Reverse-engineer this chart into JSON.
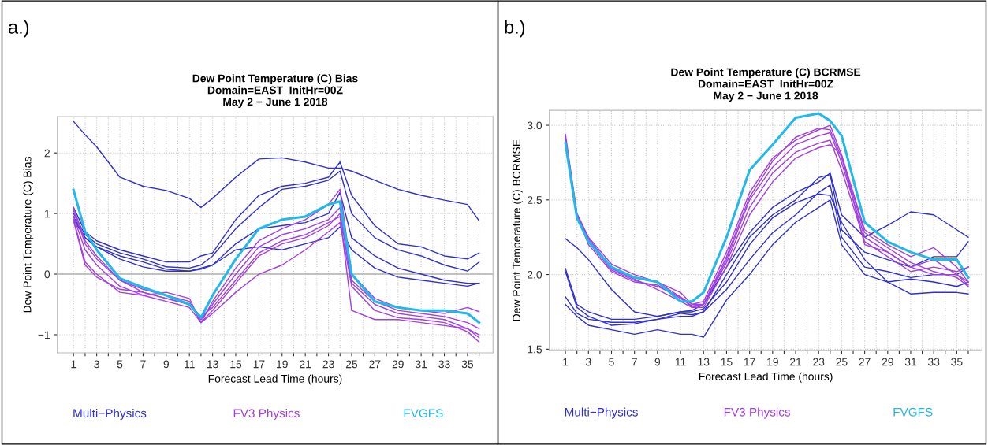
{
  "chart_data": [
    {
      "type": "line",
      "title": "Dew Point Temperature (C) Bias\nDomain=EAST  InitHr=00Z\nMay 2 − June 1 2018",
      "xlabel": "Forecast Lead Time (hours)",
      "ylabel": "Dew Point Temperature (C) Bias",
      "annotations": [
        "a.)"
      ],
      "legend": "bottom",
      "grid": true,
      "marker": "none",
      "line_style": "solid",
      "x": [
        1,
        2,
        3,
        5,
        7,
        9,
        11,
        12,
        13,
        15,
        17,
        19,
        21,
        23,
        24,
        25,
        27,
        29,
        31,
        33,
        35,
        36
      ],
      "xlim": [
        -0.4,
        37.2
      ],
      "xticks": [
        1,
        {
          "value": 2,
          "label": null
        },
        3,
        {
          "value": 4,
          "label": null
        },
        5,
        {
          "value": 6,
          "label": null
        },
        7,
        {
          "value": 8,
          "label": null
        },
        9,
        {
          "value": 10,
          "label": null
        },
        11,
        {
          "value": 12,
          "label": null
        },
        13,
        {
          "value": 14,
          "label": null
        },
        15,
        {
          "value": 16,
          "label": null
        },
        17,
        {
          "value": 18,
          "label": null
        },
        19,
        {
          "value": 20,
          "label": null
        },
        21,
        {
          "value": 22,
          "label": null
        },
        23,
        {
          "value": 24,
          "label": null
        },
        25,
        {
          "value": 26,
          "label": null
        },
        27,
        {
          "value": 28,
          "label": null
        },
        29,
        {
          "value": 30,
          "label": null
        },
        31,
        {
          "value": 32,
          "label": null
        },
        33,
        {
          "value": 34,
          "label": null
        },
        35,
        {
          "value": 36,
          "label": null
        }
      ],
      "ylim": [
        -1.3,
        2.6
      ],
      "yticks": [
        {
          "value": -1,
          "label": "−1"
        },
        0,
        1,
        2
      ],
      "ref_lines": [
        {
          "axis": "y",
          "value": 0,
          "label": null,
          "color": "#b0b0b0",
          "line_style": "solid"
        }
      ],
      "series": [
        {
          "name": "Multi−Physics",
          "color": "#3030d0",
          "values": [
            2.52,
            2.3,
            2.1,
            1.6,
            1.45,
            1.38,
            1.25,
            1.1,
            1.25,
            1.6,
            1.9,
            1.92,
            1.85,
            1.75,
            1.75,
            1.7,
            1.55,
            1.4,
            1.3,
            1.22,
            1.15,
            0.88
          ]
        },
        {
          "color": "#3030d0",
          "values": [
            1.1,
            0.7,
            0.55,
            0.4,
            0.3,
            0.2,
            0.2,
            0.3,
            0.35,
            0.9,
            1.3,
            1.45,
            1.5,
            1.6,
            1.85,
            1.3,
            0.8,
            0.5,
            0.45,
            0.3,
            0.25,
            0.35
          ]
        },
        {
          "color": "#3030d0",
          "values": [
            1.0,
            0.65,
            0.5,
            0.35,
            0.25,
            0.12,
            0.1,
            0.15,
            0.3,
            0.75,
            1.1,
            1.4,
            1.45,
            1.55,
            1.7,
            1.0,
            0.6,
            0.4,
            0.3,
            0.15,
            0.05,
            0.2
          ]
        },
        {
          "color": "#3030d0",
          "values": [
            0.95,
            0.6,
            0.45,
            0.3,
            0.2,
            0.08,
            0.05,
            0.1,
            0.15,
            0.5,
            0.75,
            0.8,
            0.85,
            1.0,
            1.35,
            0.6,
            0.3,
            0.1,
            0.0,
            -0.1,
            -0.15,
            -0.15
          ]
        },
        {
          "color": "#3030d0",
          "values": [
            0.9,
            0.6,
            0.45,
            0.25,
            0.12,
            0.05,
            0.05,
            0.08,
            0.15,
            0.4,
            0.45,
            0.4,
            0.5,
            0.6,
            0.78,
            0.4,
            0.1,
            -0.05,
            -0.1,
            -0.15,
            -0.2,
            -0.15
          ]
        },
        {
          "name": "FV3 Physics",
          "color": "#a23fe0",
          "values": [
            1.1,
            0.55,
            0.3,
            -0.1,
            -0.25,
            -0.35,
            -0.45,
            -0.8,
            -0.45,
            0.1,
            0.55,
            0.75,
            0.9,
            1.15,
            1.4,
            0.0,
            -0.4,
            -0.55,
            -0.6,
            -0.65,
            -0.55,
            -0.62
          ]
        },
        {
          "color": "#a23fe0",
          "values": [
            1.05,
            0.5,
            0.25,
            -0.1,
            -0.3,
            -0.4,
            -0.5,
            -0.75,
            -0.5,
            0.0,
            0.45,
            0.65,
            0.75,
            0.9,
            1.1,
            -0.1,
            -0.45,
            -0.6,
            -0.65,
            -0.7,
            -0.8,
            -0.9
          ]
        },
        {
          "color": "#a23fe0",
          "values": [
            0.95,
            0.4,
            0.15,
            -0.2,
            -0.35,
            -0.45,
            -0.55,
            -0.8,
            -0.6,
            -0.15,
            0.3,
            0.5,
            0.6,
            0.8,
            1.0,
            -0.15,
            -0.5,
            -0.65,
            -0.7,
            -0.75,
            -0.9,
            -1.05
          ]
        },
        {
          "color": "#a23fe0",
          "values": [
            0.9,
            0.2,
            0.0,
            -0.3,
            -0.35,
            -0.3,
            -0.4,
            -0.8,
            -0.65,
            -0.3,
            0.0,
            0.15,
            0.4,
            0.7,
            0.85,
            -0.2,
            -0.6,
            -0.72,
            -0.75,
            -0.8,
            -0.95,
            -1.12
          ]
        },
        {
          "color": "#a23fe0",
          "values": [
            0.88,
            0.15,
            -0.05,
            -0.25,
            -0.3,
            -0.4,
            -0.5,
            -0.7,
            -0.55,
            -0.1,
            0.35,
            0.55,
            0.65,
            0.85,
            0.95,
            -0.6,
            -0.75,
            -0.75,
            -0.8,
            -0.85,
            -0.9,
            -1.0
          ]
        },
        {
          "name": "FVGFS",
          "color": "#22b8e8",
          "values": [
            1.39,
            0.7,
            0.4,
            -0.07,
            -0.22,
            -0.35,
            -0.5,
            -0.72,
            -0.35,
            0.25,
            0.75,
            0.9,
            0.95,
            1.15,
            1.2,
            0.0,
            -0.45,
            -0.55,
            -0.6,
            -0.6,
            -0.65,
            -0.8
          ]
        }
      ]
    },
    {
      "type": "line",
      "title": "Dew Point Temperature (C) BCRMSE\nDomain=EAST  InitHr=00Z\nMay 2 − June 1 2018",
      "xlabel": "Forecast Lead Time (hours)",
      "ylabel": "Dew Point Temperature (C) BCRMSE",
      "annotations": [
        "b.)"
      ],
      "legend": "bottom",
      "grid": true,
      "marker": "none",
      "line_style": "solid",
      "x": [
        1,
        2,
        3,
        5,
        7,
        9,
        11,
        12,
        13,
        15,
        17,
        19,
        21,
        23,
        24,
        25,
        27,
        29,
        31,
        33,
        35,
        36
      ],
      "xlim": [
        -0.4,
        37.2
      ],
      "xticks": [
        1,
        {
          "value": 2,
          "label": null
        },
        3,
        {
          "value": 4,
          "label": null
        },
        5,
        {
          "value": 6,
          "label": null
        },
        7,
        {
          "value": 8,
          "label": null
        },
        9,
        {
          "value": 10,
          "label": null
        },
        11,
        {
          "value": 12,
          "label": null
        },
        13,
        {
          "value": 14,
          "label": null
        },
        15,
        {
          "value": 16,
          "label": null
        },
        17,
        {
          "value": 18,
          "label": null
        },
        19,
        {
          "value": 20,
          "label": null
        },
        21,
        {
          "value": 22,
          "label": null
        },
        23,
        {
          "value": 24,
          "label": null
        },
        25,
        {
          "value": 26,
          "label": null
        },
        27,
        {
          "value": 28,
          "label": null
        },
        29,
        {
          "value": 30,
          "label": null
        },
        31,
        {
          "value": 32,
          "label": null
        },
        33,
        {
          "value": 34,
          "label": null
        },
        35,
        {
          "value": 36,
          "label": null
        }
      ],
      "ylim": [
        1.49,
        3.1
      ],
      "yticks": [
        {
          "value": 1.5,
          "label": "1.5"
        },
        {
          "value": 2.0,
          "label": "2.0"
        },
        {
          "value": 2.5,
          "label": "2.5"
        },
        {
          "value": 3.0,
          "label": "3.0"
        }
      ],
      "series": [
        {
          "name": "Multi−Physics",
          "color": "#3030d0",
          "values": [
            2.24,
            2.18,
            2.1,
            1.9,
            1.75,
            1.72,
            1.75,
            1.75,
            1.77,
            1.95,
            2.2,
            2.38,
            2.48,
            2.54,
            2.53,
            2.35,
            2.1,
            1.95,
            1.87,
            1.88,
            1.88,
            1.87
          ]
        },
        {
          "color": "#3030d0",
          "values": [
            2.04,
            1.8,
            1.75,
            1.7,
            1.7,
            1.72,
            1.75,
            1.76,
            1.8,
            2.05,
            2.28,
            2.45,
            2.55,
            2.62,
            2.68,
            2.4,
            2.25,
            2.33,
            2.42,
            2.4,
            2.3,
            2.25
          ]
        },
        {
          "color": "#3030d0",
          "values": [
            2.02,
            1.78,
            1.72,
            1.66,
            1.67,
            1.7,
            1.72,
            1.72,
            1.75,
            2.0,
            2.25,
            2.4,
            2.5,
            2.65,
            2.67,
            2.3,
            2.15,
            2.1,
            2.05,
            2.12,
            2.12,
            2.22
          ]
        },
        {
          "color": "#3030d0",
          "values": [
            1.85,
            1.74,
            1.7,
            1.68,
            1.68,
            1.7,
            1.74,
            1.73,
            1.75,
            1.9,
            2.1,
            2.28,
            2.4,
            2.55,
            2.6,
            2.25,
            2.05,
            2.02,
            1.98,
            2.0,
            2.0,
            2.05
          ]
        },
        {
          "color": "#3030d0",
          "values": [
            1.8,
            1.72,
            1.66,
            1.63,
            1.6,
            1.63,
            1.6,
            1.6,
            1.58,
            1.83,
            2.0,
            2.2,
            2.35,
            2.45,
            2.5,
            2.2,
            2.0,
            1.95,
            1.97,
            1.95,
            1.92,
            1.95
          ]
        },
        {
          "name": "FV3 Physics",
          "color": "#a23fe0",
          "values": [
            2.94,
            2.41,
            2.25,
            2.07,
            2.0,
            1.95,
            1.88,
            1.8,
            1.82,
            2.15,
            2.55,
            2.78,
            2.9,
            2.97,
            3.0,
            2.8,
            2.3,
            2.2,
            2.12,
            2.18,
            2.05,
            1.95
          ]
        },
        {
          "color": "#a23fe0",
          "values": [
            2.92,
            2.4,
            2.24,
            2.05,
            1.98,
            1.95,
            1.85,
            1.8,
            1.8,
            2.1,
            2.5,
            2.72,
            2.87,
            2.93,
            2.95,
            2.75,
            2.25,
            2.15,
            2.05,
            2.1,
            2.0,
            1.93
          ]
        },
        {
          "color": "#a23fe0",
          "values": [
            2.9,
            2.39,
            2.23,
            2.04,
            1.97,
            1.9,
            1.82,
            1.78,
            1.8,
            2.08,
            2.45,
            2.68,
            2.82,
            2.88,
            2.9,
            2.7,
            2.22,
            2.12,
            2.02,
            2.05,
            2.02,
            2.05
          ]
        },
        {
          "color": "#a23fe0",
          "values": [
            2.88,
            2.38,
            2.22,
            2.03,
            1.96,
            1.92,
            1.85,
            1.78,
            1.78,
            2.05,
            2.4,
            2.62,
            2.78,
            2.85,
            2.87,
            2.8,
            2.2,
            2.15,
            2.05,
            2.0,
            2.0,
            1.95
          ]
        },
        {
          "color": "#a23fe0",
          "values": [
            2.9,
            2.4,
            2.2,
            2.02,
            1.95,
            1.93,
            1.84,
            1.79,
            1.8,
            2.12,
            2.52,
            2.76,
            2.92,
            2.98,
            2.97,
            2.78,
            2.28,
            2.18,
            2.08,
            2.02,
            1.98,
            1.92
          ]
        },
        {
          "name": "FVGFS",
          "color": "#22b8e8",
          "values": [
            2.88,
            2.38,
            2.22,
            2.05,
            1.98,
            1.95,
            1.82,
            1.82,
            1.88,
            2.25,
            2.7,
            2.87,
            3.05,
            3.08,
            3.03,
            2.93,
            2.35,
            2.22,
            2.15,
            2.1,
            2.1,
            1.98
          ]
        }
      ]
    }
  ]
}
